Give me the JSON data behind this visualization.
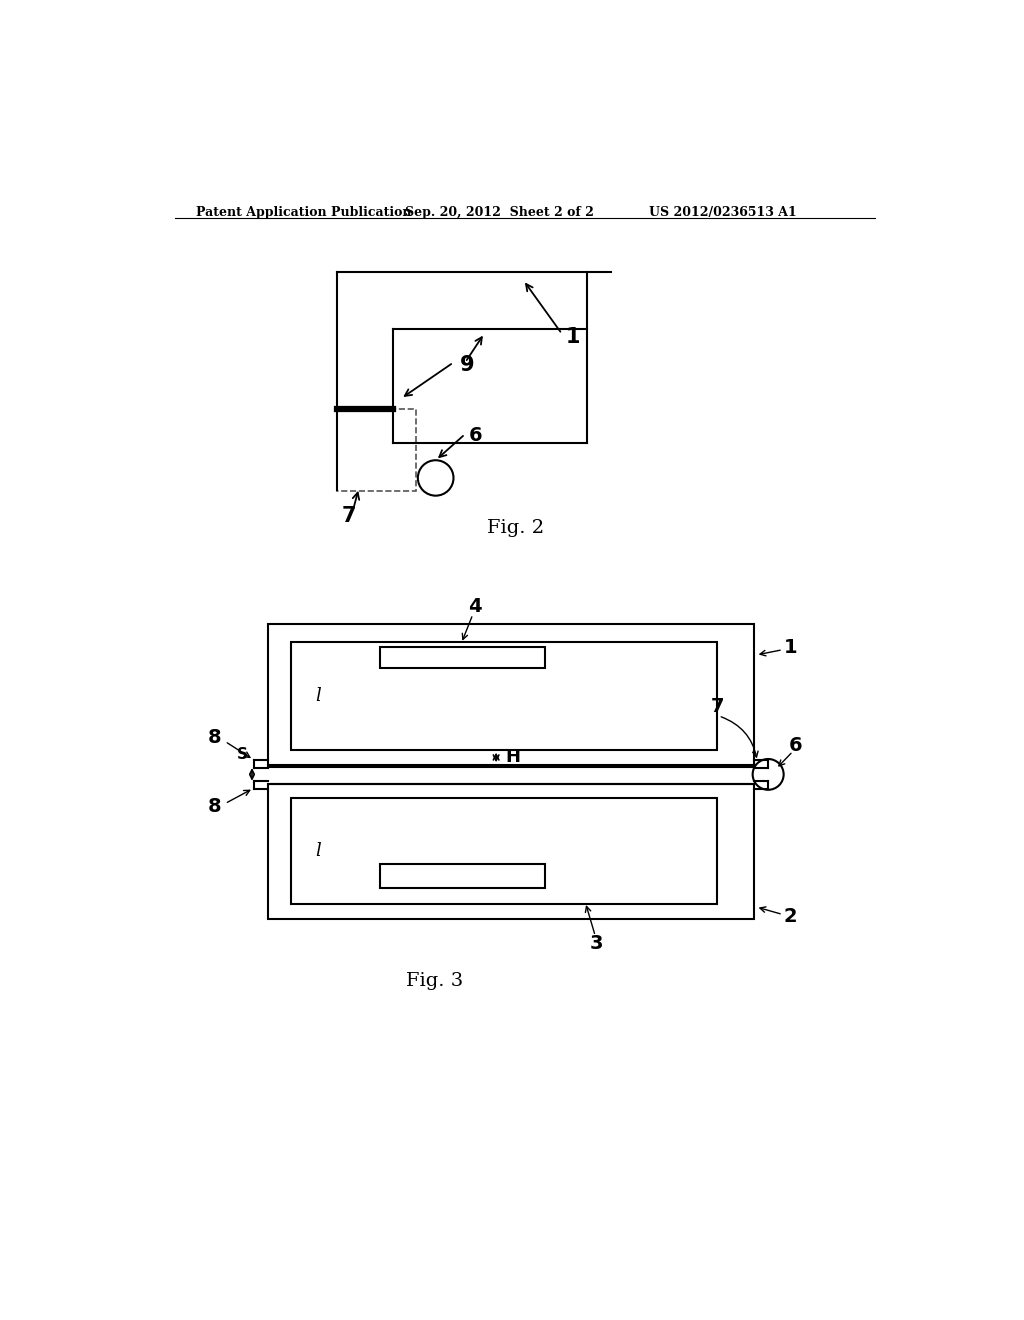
{
  "bg_color": "#ffffff",
  "header_left": "Patent Application Publication",
  "header_mid": "Sep. 20, 2012  Sheet 2 of 2",
  "header_right": "US 2012/0236513 A1",
  "fig2_caption": "Fig. 2",
  "fig3_caption": "Fig. 3",
  "line_color": "#000000"
}
